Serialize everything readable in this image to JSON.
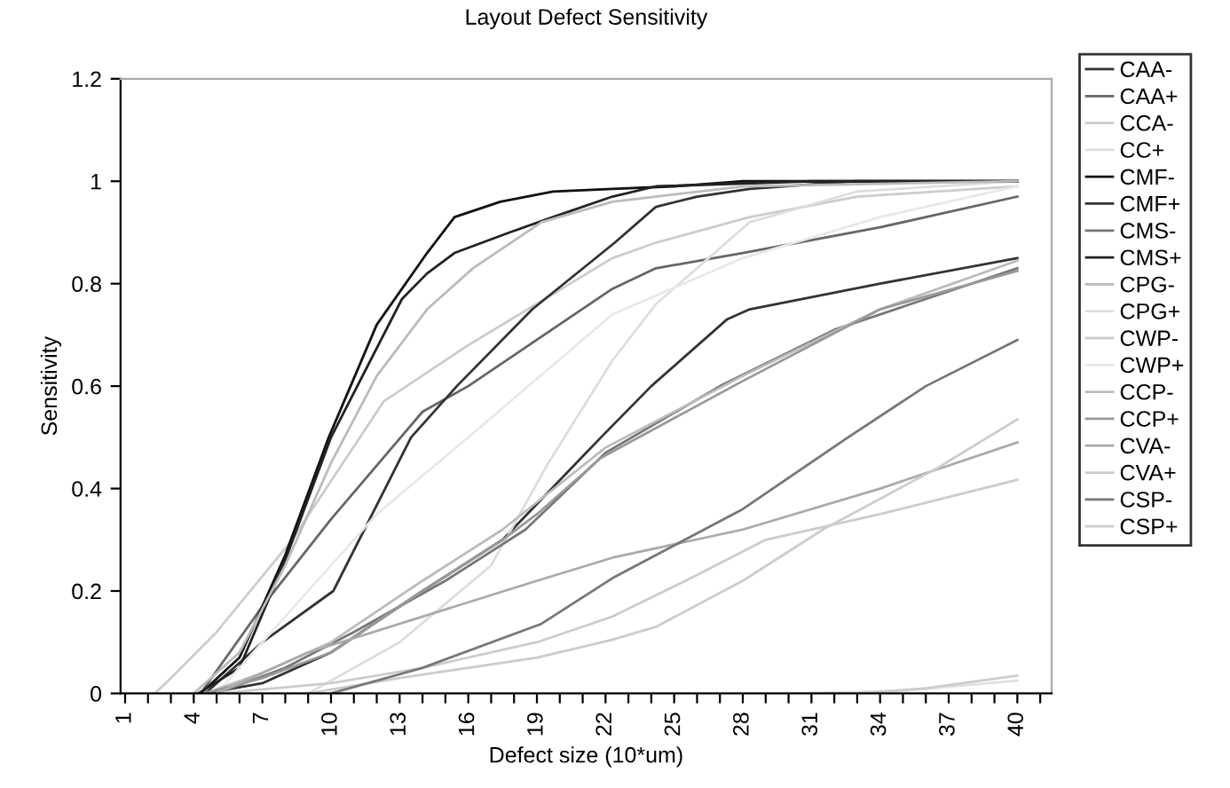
{
  "chart_data": {
    "type": "line",
    "title": "Layout Defect Sensitivity",
    "xlabel": "Defect size (10*um)",
    "ylabel": "Sensitivity",
    "xlim": [
      0.8,
      41.5
    ],
    "ylim": [
      0,
      1.2
    ],
    "yticks": [
      0,
      0.2,
      0.4,
      0.6,
      0.8,
      1,
      1.2
    ],
    "xticks": [
      1,
      {
        "value": 2,
        "label": null
      },
      {
        "value": 3,
        "label": null
      },
      4,
      {
        "value": 5,
        "label": null
      },
      {
        "value": 6,
        "label": null
      },
      7,
      {
        "value": 8,
        "label": null
      },
      {
        "value": 9,
        "label": null
      },
      10,
      {
        "value": 11,
        "label": null
      },
      {
        "value": 12,
        "label": null
      },
      13,
      {
        "value": 14,
        "label": null
      },
      {
        "value": 15,
        "label": null
      },
      16,
      {
        "value": 17,
        "label": null
      },
      {
        "value": 18,
        "label": null
      },
      19,
      {
        "value": 20,
        "label": null
      },
      {
        "value": 21,
        "label": null
      },
      22,
      {
        "value": 23,
        "label": null
      },
      {
        "value": 24,
        "label": null
      },
      25,
      {
        "value": 26,
        "label": null
      },
      {
        "value": 27,
        "label": null
      },
      28,
      {
        "value": 29,
        "label": null
      },
      {
        "value": 30,
        "label": null
      },
      31,
      {
        "value": 32,
        "label": null
      },
      {
        "value": 33,
        "label": null
      },
      34,
      {
        "value": 35,
        "label": null
      },
      {
        "value": 36,
        "label": null
      },
      37,
      {
        "value": 38,
        "label": null
      },
      {
        "value": 39,
        "label": null
      },
      40,
      {
        "value": 41,
        "label": null
      }
    ],
    "grid": false,
    "legend": "right",
    "marker": "none",
    "line_style": "solid",
    "series": [
      {
        "name": "CAA-",
        "color": "#333333",
        "x": [
          4.5,
          7,
          10,
          14,
          17.5,
          21.8,
          24,
          27.3,
          28.3,
          34,
          40
        ],
        "values": [
          0,
          0.02,
          0.08,
          0.2,
          0.3,
          0.5,
          0.6,
          0.73,
          0.75,
          0.8,
          0.85
        ]
      },
      {
        "name": "CAA+",
        "color": "#666666",
        "x": [
          4.3,
          7,
          10,
          14,
          16,
          22.3,
          24.2,
          28,
          34,
          40
        ],
        "values": [
          0,
          0.17,
          0.34,
          0.55,
          0.6,
          0.79,
          0.83,
          0.86,
          0.91,
          0.97
        ]
      },
      {
        "name": "CCA-",
        "color": "#cccccc",
        "x": [
          2.3,
          3,
          5,
          8.3,
          12.3,
          16,
          22.3,
          24.2,
          28.3,
          33,
          40
        ],
        "values": [
          0,
          0.03,
          0.12,
          0.3,
          0.57,
          0.68,
          0.85,
          0.88,
          0.93,
          0.97,
          0.99
        ]
      },
      {
        "name": "CC+",
        "color": "#dddddd",
        "x": [
          9,
          13,
          17,
          19.5,
          22.3,
          24.2,
          28.3,
          33,
          40
        ],
        "values": [
          0,
          0.1,
          0.25,
          0.45,
          0.65,
          0.76,
          0.92,
          0.98,
          1.0
        ]
      },
      {
        "name": "CMF-",
        "color": "#111111",
        "x": [
          4.3,
          6,
          8,
          9.9,
          12,
          14.2,
          15.4,
          17.4,
          19.7,
          22.3,
          25,
          28,
          40
        ],
        "values": [
          0,
          0.07,
          0.27,
          0.5,
          0.72,
          0.86,
          0.93,
          0.96,
          0.98,
          0.985,
          0.99,
          1.0,
          1.0
        ]
      },
      {
        "name": "CMF+",
        "color": "#333333",
        "x": [
          4.5,
          7,
          10.1,
          13.5,
          15.5,
          18.8,
          22.4,
          24.2,
          26,
          28.3,
          32.9,
          40
        ],
        "values": [
          0,
          0.1,
          0.2,
          0.5,
          0.6,
          0.75,
          0.88,
          0.95,
          0.97,
          0.985,
          1.0,
          1.0
        ]
      },
      {
        "name": "CMS-",
        "color": "#777777",
        "x": [
          5,
          8,
          11,
          15,
          18.5,
          22,
          27,
          32,
          40
        ],
        "values": [
          0,
          0.05,
          0.12,
          0.22,
          0.32,
          0.47,
          0.6,
          0.71,
          0.83
        ]
      },
      {
        "name": "CMS+",
        "color": "#222222",
        "x": [
          4.2,
          6,
          8,
          10,
          13.1,
          14.2,
          15.4,
          17.8,
          19.7,
          22.3,
          24.2,
          31,
          40
        ],
        "values": [
          0,
          0.05,
          0.26,
          0.5,
          0.77,
          0.82,
          0.86,
          0.9,
          0.93,
          0.97,
          0.99,
          1.0,
          1.0
        ]
      },
      {
        "name": "CPG-",
        "color": "#bbbbbb",
        "x": [
          4,
          6,
          8,
          10,
          12,
          14.2,
          16.2,
          19.2,
          22.3,
          28,
          40
        ],
        "values": [
          0,
          0.08,
          0.25,
          0.45,
          0.62,
          0.75,
          0.83,
          0.92,
          0.96,
          0.99,
          1.0
        ]
      },
      {
        "name": "CPG+",
        "color": "#e0e0e0",
        "x": [
          30,
          35,
          40
        ],
        "values": [
          0,
          0.005,
          0.025
        ]
      },
      {
        "name": "CWP-",
        "color": "#cccccc",
        "x": [
          5,
          10,
          14,
          19,
          22.3,
          25.5,
          29,
          34,
          40
        ],
        "values": [
          0,
          0.02,
          0.05,
          0.1,
          0.15,
          0.22,
          0.3,
          0.35,
          0.417
        ]
      },
      {
        "name": "CWP+",
        "color": "#e8e8e8",
        "x": [
          5,
          8,
          12,
          16,
          22.3,
          28,
          34,
          40
        ],
        "values": [
          0,
          0.15,
          0.35,
          0.5,
          0.74,
          0.85,
          0.93,
          0.99
        ]
      },
      {
        "name": "CCP-",
        "color": "#bbbbbb",
        "x": [
          4.5,
          7,
          10,
          14,
          17.5,
          22,
          25,
          28,
          34,
          40
        ],
        "values": [
          0,
          0.04,
          0.1,
          0.22,
          0.32,
          0.48,
          0.55,
          0.62,
          0.75,
          0.845
        ]
      },
      {
        "name": "CCP+",
        "color": "#999999",
        "x": [
          4.5,
          7,
          10,
          14,
          17.5,
          19,
          21.8,
          28,
          34,
          40
        ],
        "values": [
          0,
          0.03,
          0.08,
          0.2,
          0.3,
          0.35,
          0.46,
          0.61,
          0.75,
          0.825
        ]
      },
      {
        "name": "CVA-",
        "color": "#aaaaaa",
        "x": [
          5,
          9,
          14,
          19,
          22.3,
          28,
          34,
          40
        ],
        "values": [
          0,
          0.08,
          0.15,
          0.22,
          0.265,
          0.32,
          0.4,
          0.49
        ]
      },
      {
        "name": "CVA+",
        "color": "#cccccc",
        "x": [
          9,
          13,
          19,
          22.3,
          24.2,
          28,
          31.5,
          36.5,
          40
        ],
        "values": [
          0,
          0.03,
          0.07,
          0.105,
          0.13,
          0.22,
          0.32,
          0.44,
          0.535
        ]
      },
      {
        "name": "CSP-",
        "color": "#777777",
        "x": [
          10,
          14,
          19.2,
          22.3,
          28,
          32.6,
          36,
          40
        ],
        "values": [
          0,
          0.05,
          0.136,
          0.225,
          0.36,
          0.5,
          0.6,
          0.69
        ]
      },
      {
        "name": "CSP+",
        "color": "#cccccc",
        "x": [
          33,
          36,
          40
        ],
        "values": [
          0,
          0.01,
          0.035
        ]
      }
    ]
  }
}
